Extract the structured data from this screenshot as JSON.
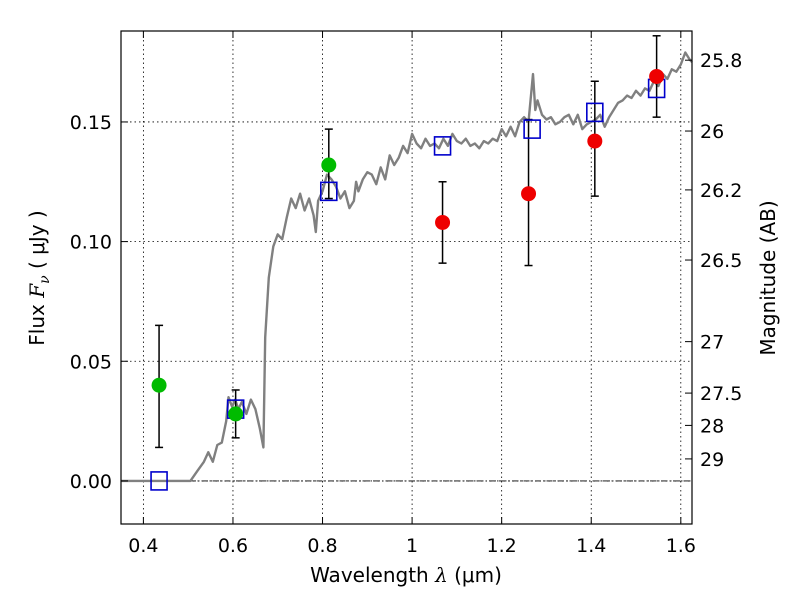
{
  "chart_data": {
    "type": "scatter",
    "xlabel_prefix": "Wavelength  ",
    "xlabel_symbol": "λ",
    "xlabel_unit": " (μm)",
    "ylabel_prefix": "Flux  ",
    "ylabel_symbol": "F",
    "ylabel_subscript": "ν",
    "ylabel_unit": "  ( μJy )",
    "y2label": "Magnitude (AB)",
    "xlim": [
      0.35,
      1.625
    ],
    "ylim": [
      -0.018,
      0.188
    ],
    "grid": true,
    "grid_style": "dotted",
    "x_ticks": [
      0.4,
      0.6,
      0.8,
      1.0,
      1.2,
      1.4,
      1.6
    ],
    "x_tick_labels": [
      "0.4",
      "0.6",
      "0.8",
      "1",
      "1.2",
      "1.4",
      "1.6"
    ],
    "y_ticks": [
      0.0,
      0.05,
      0.1,
      0.15
    ],
    "y_tick_labels": [
      "0.00",
      "0.05",
      "0.10",
      "0.15"
    ],
    "magnitude_ticks": [
      {
        "label": "25.8",
        "flux": 0.1758
      },
      {
        "label": "26",
        "flux": 0.1462
      },
      {
        "label": "26.2",
        "flux": 0.1216
      },
      {
        "label": "26.5",
        "flux": 0.0923
      },
      {
        "label": "27",
        "flux": 0.0582
      },
      {
        "label": "27.5",
        "flux": 0.0367
      },
      {
        "label": "28",
        "flux": 0.0232
      },
      {
        "label": "29",
        "flux": 0.0092
      }
    ],
    "colors": {
      "model": "#808080",
      "model_points": "#0000cc",
      "green_points": "#00bb00",
      "red_points": "#ee0000",
      "errorbars": "#000000",
      "zero_line": "#000000"
    },
    "model_spectrum": [
      [
        0.35,
        0.0
      ],
      [
        0.49,
        0.0
      ],
      [
        0.505,
        0.0
      ],
      [
        0.52,
        0.004
      ],
      [
        0.535,
        0.008
      ],
      [
        0.545,
        0.012
      ],
      [
        0.555,
        0.008
      ],
      [
        0.565,
        0.015
      ],
      [
        0.575,
        0.016
      ],
      [
        0.585,
        0.025
      ],
      [
        0.59,
        0.035
      ],
      [
        0.598,
        0.031
      ],
      [
        0.605,
        0.034
      ],
      [
        0.612,
        0.03
      ],
      [
        0.62,
        0.033
      ],
      [
        0.63,
        0.028
      ],
      [
        0.64,
        0.034
      ],
      [
        0.65,
        0.03
      ],
      [
        0.66,
        0.022
      ],
      [
        0.668,
        0.014
      ],
      [
        0.672,
        0.06
      ],
      [
        0.68,
        0.085
      ],
      [
        0.69,
        0.098
      ],
      [
        0.7,
        0.103
      ],
      [
        0.71,
        0.101
      ],
      [
        0.72,
        0.11
      ],
      [
        0.73,
        0.118
      ],
      [
        0.74,
        0.114
      ],
      [
        0.75,
        0.12
      ],
      [
        0.76,
        0.113
      ],
      [
        0.77,
        0.118
      ],
      [
        0.78,
        0.111
      ],
      [
        0.785,
        0.104
      ],
      [
        0.79,
        0.117
      ],
      [
        0.8,
        0.121
      ],
      [
        0.81,
        0.128
      ],
      [
        0.82,
        0.126
      ],
      [
        0.83,
        0.123
      ],
      [
        0.84,
        0.118
      ],
      [
        0.85,
        0.121
      ],
      [
        0.86,
        0.114
      ],
      [
        0.87,
        0.117
      ],
      [
        0.875,
        0.125
      ],
      [
        0.88,
        0.121
      ],
      [
        0.89,
        0.126
      ],
      [
        0.9,
        0.129
      ],
      [
        0.91,
        0.128
      ],
      [
        0.92,
        0.124
      ],
      [
        0.93,
        0.131
      ],
      [
        0.94,
        0.126
      ],
      [
        0.95,
        0.136
      ],
      [
        0.96,
        0.132
      ],
      [
        0.97,
        0.135
      ],
      [
        0.98,
        0.14
      ],
      [
        0.99,
        0.137
      ],
      [
        1.0,
        0.145
      ],
      [
        1.01,
        0.141
      ],
      [
        1.02,
        0.139
      ],
      [
        1.03,
        0.143
      ],
      [
        1.04,
        0.14
      ],
      [
        1.05,
        0.141
      ],
      [
        1.06,
        0.139
      ],
      [
        1.07,
        0.143
      ],
      [
        1.08,
        0.14
      ],
      [
        1.09,
        0.145
      ],
      [
        1.1,
        0.142
      ],
      [
        1.11,
        0.141
      ],
      [
        1.12,
        0.143
      ],
      [
        1.13,
        0.14
      ],
      [
        1.14,
        0.141
      ],
      [
        1.15,
        0.139
      ],
      [
        1.16,
        0.142
      ],
      [
        1.17,
        0.141
      ],
      [
        1.18,
        0.143
      ],
      [
        1.19,
        0.142
      ],
      [
        1.2,
        0.147
      ],
      [
        1.21,
        0.144
      ],
      [
        1.22,
        0.148
      ],
      [
        1.23,
        0.144
      ],
      [
        1.24,
        0.15
      ],
      [
        1.25,
        0.152
      ],
      [
        1.26,
        0.15
      ],
      [
        1.27,
        0.17
      ],
      [
        1.275,
        0.155
      ],
      [
        1.28,
        0.159
      ],
      [
        1.29,
        0.153
      ],
      [
        1.3,
        0.151
      ],
      [
        1.31,
        0.152
      ],
      [
        1.32,
        0.149
      ],
      [
        1.33,
        0.15
      ],
      [
        1.34,
        0.152
      ],
      [
        1.35,
        0.153
      ],
      [
        1.36,
        0.149
      ],
      [
        1.37,
        0.153
      ],
      [
        1.38,
        0.147
      ],
      [
        1.39,
        0.149
      ],
      [
        1.4,
        0.15
      ],
      [
        1.41,
        0.151
      ],
      [
        1.42,
        0.153
      ],
      [
        1.43,
        0.148
      ],
      [
        1.44,
        0.152
      ],
      [
        1.45,
        0.155
      ],
      [
        1.46,
        0.158
      ],
      [
        1.47,
        0.159
      ],
      [
        1.48,
        0.161
      ],
      [
        1.49,
        0.16
      ],
      [
        1.5,
        0.163
      ],
      [
        1.51,
        0.161
      ],
      [
        1.52,
        0.164
      ],
      [
        1.53,
        0.163
      ],
      [
        1.54,
        0.167
      ],
      [
        1.55,
        0.165
      ],
      [
        1.56,
        0.17
      ],
      [
        1.57,
        0.168
      ],
      [
        1.58,
        0.172
      ],
      [
        1.59,
        0.171
      ],
      [
        1.6,
        0.174
      ],
      [
        1.61,
        0.179
      ],
      [
        1.62,
        0.176
      ],
      [
        1.625,
        0.175
      ]
    ],
    "model_points": [
      {
        "x": 0.435,
        "y": 0.0
      },
      {
        "x": 0.606,
        "y": 0.03
      },
      {
        "x": 0.814,
        "y": 0.121
      },
      {
        "x": 1.068,
        "y": 0.14
      },
      {
        "x": 1.268,
        "y": 0.147
      },
      {
        "x": 1.408,
        "y": 0.154
      },
      {
        "x": 1.546,
        "y": 0.164
      }
    ],
    "green_points": [
      {
        "x": 0.435,
        "y": 0.04,
        "err_low": 0.014,
        "err_high": 0.065
      },
      {
        "x": 0.606,
        "y": 0.028,
        "err_low": 0.018,
        "err_high": 0.038
      },
      {
        "x": 0.814,
        "y": 0.132,
        "err_low": 0.118,
        "err_high": 0.147
      }
    ],
    "red_points": [
      {
        "x": 1.068,
        "y": 0.108,
        "err_low": 0.091,
        "err_high": 0.125
      },
      {
        "x": 1.26,
        "y": 0.12,
        "err_low": 0.09,
        "err_high": 0.151
      },
      {
        "x": 1.408,
        "y": 0.142,
        "err_low": 0.119,
        "err_high": 0.167
      },
      {
        "x": 1.546,
        "y": 0.169,
        "err_low": 0.152,
        "err_high": 0.186
      }
    ]
  }
}
